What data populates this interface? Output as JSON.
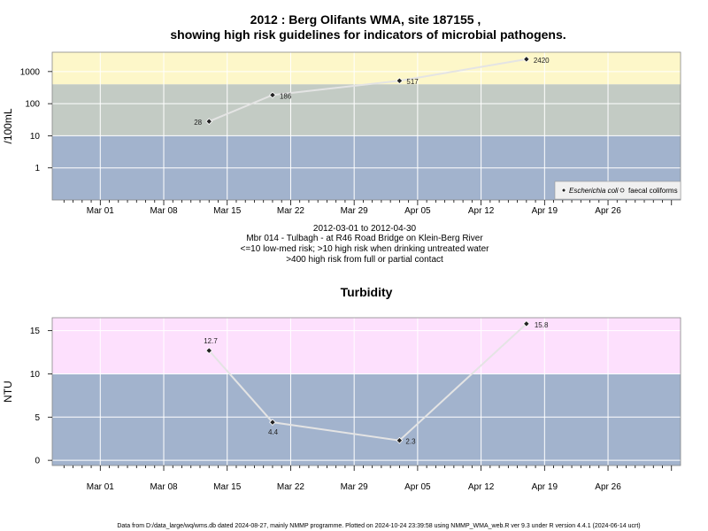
{
  "chart_data": [
    {
      "type": "line",
      "title_line1": "2012 : Berg Olifants WMA, site 187155 ,",
      "title_line2": "showing high risk guidelines for indicators of microbial pathogens.",
      "ylabel": "/100mL",
      "yscale": "log",
      "yticks": [
        "1",
        "10",
        "100",
        "1000"
      ],
      "xticks": [
        "Mar 01",
        "Mar 08",
        "Mar 15",
        "Mar 22",
        "Mar 29",
        "Apr 05",
        "Apr 12",
        "Apr 19",
        "Apr 26"
      ],
      "bands": [
        {
          "from": 400,
          "to": 4000,
          "color": "#fdf7c9"
        },
        {
          "from": 10,
          "to": 400,
          "color": "#c3cbc4"
        },
        {
          "from": 0.1,
          "to": 10,
          "color": "#a2b3cd"
        }
      ],
      "grid": true,
      "legend_position": "bottom-right",
      "series": [
        {
          "name": "Escherichia coli",
          "marker": "filled-diamond",
          "points": [
            {
              "x": "2012-03-13",
              "y": 28,
              "label": "28"
            },
            {
              "x": "2012-03-20",
              "y": 186,
              "label": "186"
            },
            {
              "x": "2012-04-03",
              "y": 517,
              "label": "517"
            },
            {
              "x": "2012-04-17",
              "y": 2420,
              "label": "2420"
            }
          ]
        },
        {
          "name": "faecal coliforms",
          "marker": "open-circle",
          "points": []
        }
      ],
      "notes": [
        "2012-03-01 to 2012-04-30",
        "Mbr 014 - Tulbagh - at R46 Road Bridge on Klein-Berg River",
        "<=10 low-med risk; >10 high risk when drinking untreated water",
        ">400 high risk from full or partial contact"
      ]
    },
    {
      "type": "line",
      "title": "Turbidity",
      "ylabel": "NTU",
      "ylim": [
        -0.6,
        16.5
      ],
      "yticks": [
        "0",
        "5",
        "10",
        "15"
      ],
      "xticks": [
        "Mar 01",
        "Mar 08",
        "Mar 15",
        "Mar 22",
        "Mar 29",
        "Apr 05",
        "Apr 12",
        "Apr 19",
        "Apr 26"
      ],
      "bands": [
        {
          "from": 10,
          "to": 16.5,
          "color": "#fde0fd"
        },
        {
          "from": -0.6,
          "to": 10,
          "color": "#a2b3cd"
        }
      ],
      "grid": true,
      "series": [
        {
          "marker": "filled-diamond",
          "points": [
            {
              "x": "2012-03-13",
              "y": 12.7,
              "label": "12.7"
            },
            {
              "x": "2012-03-20",
              "y": 4.4,
              "label": "4.4"
            },
            {
              "x": "2012-04-03",
              "y": 2.3,
              "label": "2.3"
            },
            {
              "x": "2012-04-17",
              "y": 15.8,
              "label": "15.8"
            }
          ]
        }
      ]
    }
  ],
  "footer": "Data from D:/data_large/wq/wms.db dated 2024-08-27, mainly NMMP programme. Plotted on 2024-10-24 23:39:58 using NMMP_WMA_web.R ver 9.3 under R version 4.4.1 (2024-06-14 ucrt)"
}
